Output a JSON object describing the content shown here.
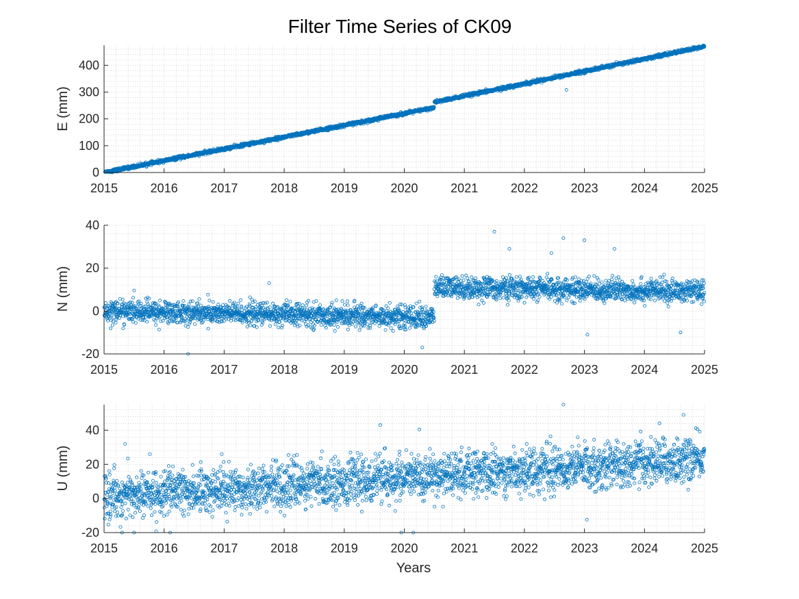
{
  "chart_data": {
    "type": "scatter",
    "title": "Filter Time Series of CK09",
    "xlabel": "Years",
    "xlim": [
      2015,
      2025
    ],
    "xticks": [
      "2015",
      "2016",
      "2017",
      "2018",
      "2019",
      "2020",
      "2021",
      "2022",
      "2023",
      "2024",
      "2025"
    ],
    "marker_color": "#0072BD",
    "grid": "minor dotted",
    "panels": [
      {
        "ylabel": "E (mm)",
        "ylim": [
          0,
          475
        ],
        "yticks": [
          "0",
          "100",
          "200",
          "300",
          "400"
        ],
        "ytick_values": [
          0,
          100,
          200,
          300,
          400
        ],
        "series": [
          {
            "trend": {
              "x": [
                2015.0,
                2020.5,
                2020.5,
                2025.0
              ],
              "y": [
                0,
                242,
                262,
                470
              ]
            },
            "noise_sd": 3,
            "sample_points": [
              [
                2015.0,
                2
              ],
              [
                2016.0,
                47
              ],
              [
                2017.0,
                92
              ],
              [
                2018.0,
                138
              ],
              [
                2019.0,
                183
              ],
              [
                2020.0,
                228
              ],
              [
                2020.45,
                242
              ],
              [
                2020.55,
                264
              ],
              [
                2021.0,
                283
              ],
              [
                2022.0,
                330
              ],
              [
                2023.0,
                377
              ],
              [
                2024.0,
                424
              ],
              [
                2025.0,
                470
              ]
            ],
            "outliers": [
              [
                2021.5,
                308
              ],
              [
                2022.7,
                308
              ]
            ]
          }
        ]
      },
      {
        "ylabel": "N (mm)",
        "ylim": [
          -20,
          40
        ],
        "yticks": [
          "-20",
          "0",
          "20",
          "40"
        ],
        "ytick_values": [
          -20,
          0,
          20,
          40
        ],
        "series": [
          {
            "trend": {
              "x": [
                2015.0,
                2020.5,
                2020.5,
                2025.0
              ],
              "y": [
                0,
                -3,
                11,
                9
              ]
            },
            "noise_sd": 2.6,
            "sample_points": [
              [
                2015.0,
                0
              ],
              [
                2016.0,
                0
              ],
              [
                2017.0,
                -1
              ],
              [
                2018.0,
                -1
              ],
              [
                2019.0,
                -2
              ],
              [
                2020.0,
                -2.5
              ],
              [
                2020.5,
                -3
              ],
              [
                2020.55,
                11
              ],
              [
                2021.0,
                10.5
              ],
              [
                2022.0,
                10
              ],
              [
                2023.0,
                9.5
              ],
              [
                2024.0,
                9
              ],
              [
                2025.0,
                9
              ]
            ],
            "outliers": [
              [
                2017.75,
                13
              ],
              [
                2016.4,
                -20
              ],
              [
                2020.3,
                -17
              ],
              [
                2021.5,
                37
              ],
              [
                2021.75,
                29
              ],
              [
                2022.45,
                27
              ],
              [
                2022.65,
                34
              ],
              [
                2023.0,
                33
              ],
              [
                2023.5,
                29
              ],
              [
                2023.05,
                -11
              ],
              [
                2024.6,
                -10
              ]
            ]
          }
        ]
      },
      {
        "ylabel": "U (mm)",
        "ylim": [
          -20,
          55
        ],
        "yticks": [
          "-20",
          "0",
          "20",
          "40"
        ],
        "ytick_values": [
          -20,
          0,
          20,
          40
        ],
        "series": [
          {
            "trend": {
              "x": [
                2015.0,
                2025.0
              ],
              "y": [
                1,
                23
              ]
            },
            "noise_sd": 6.5,
            "sample_points": [
              [
                2015.0,
                1
              ],
              [
                2016.0,
                3
              ],
              [
                2017.0,
                5
              ],
              [
                2018.0,
                8
              ],
              [
                2019.0,
                10
              ],
              [
                2020.0,
                12
              ],
              [
                2021.0,
                14
              ],
              [
                2022.0,
                17
              ],
              [
                2023.0,
                19
              ],
              [
                2024.0,
                21
              ],
              [
                2025.0,
                23
              ]
            ],
            "outliers": [
              [
                2015.35,
                32
              ],
              [
                2019.6,
                43
              ],
              [
                2022.65,
                55
              ],
              [
                2024.65,
                49
              ],
              [
                2024.25,
                44
              ],
              [
                2015.3,
                -20
              ],
              [
                2015.5,
                -20
              ],
              [
                2016.1,
                -20
              ],
              [
                2019.95,
                -20
              ],
              [
                2020.15,
                -20
              ]
            ]
          }
        ]
      }
    ]
  }
}
